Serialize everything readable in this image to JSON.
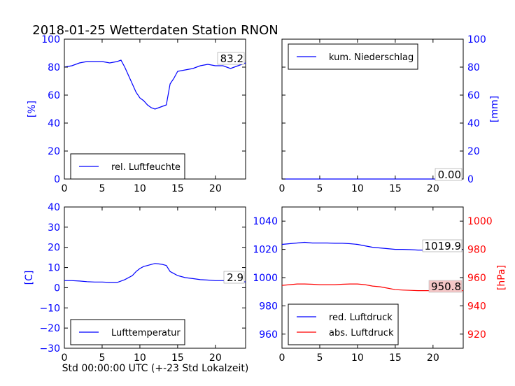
{
  "title": "2018-01-25 Wetterdaten Station RNON",
  "xlabel": "Std 00:00:00 UTC (+-23 Std Lokalzeit)",
  "colors": {
    "blue": "#0000ff",
    "red": "#ff0000",
    "axis": "#000000"
  },
  "chart_data": [
    {
      "type": "line",
      "id": "humidity",
      "ylabel": "[%]",
      "ylim": [
        0,
        100
      ],
      "xlim": [
        0,
        24
      ],
      "x_ticks": [
        "0",
        "5",
        "10",
        "15",
        "20"
      ],
      "y_ticks": [
        "0",
        "20",
        "40",
        "60",
        "80",
        "100"
      ],
      "legend": "rel. Luftfeuchte",
      "legend_placement": "lower-left",
      "last_value": "83.2",
      "series": [
        {
          "name": "rel. Luftfeuchte",
          "color": "#0000ff",
          "x": [
            0,
            1,
            2,
            3,
            4,
            5,
            6,
            7,
            7.5,
            8,
            8.5,
            9,
            9.5,
            10,
            10.5,
            11,
            11.5,
            12,
            12.5,
            13,
            13.5,
            14,
            14.5,
            15,
            16,
            17,
            18,
            19,
            20,
            21,
            22,
            23,
            24
          ],
          "values": [
            80,
            81,
            83,
            84,
            84,
            84,
            83,
            84,
            85,
            80,
            74,
            68,
            62,
            58,
            56,
            53,
            51,
            50,
            51,
            52,
            53,
            68,
            72,
            77,
            78,
            79,
            81,
            82,
            81,
            81,
            79,
            81,
            83
          ]
        }
      ]
    },
    {
      "type": "line",
      "id": "precip",
      "ylabel": "[mm]",
      "ylim": [
        0,
        100
      ],
      "xlim": [
        0,
        24
      ],
      "x_ticks": [
        "0",
        "5",
        "10",
        "15",
        "20"
      ],
      "y_ticks": [
        "0",
        "20",
        "40",
        "60",
        "80",
        "100"
      ],
      "legend": "kum. Niederschlag",
      "legend_placement": "top-left",
      "last_value": "0.00",
      "series": [
        {
          "name": "kum. Niederschlag",
          "color": "#0000ff",
          "x": [
            0,
            24
          ],
          "values": [
            0,
            0
          ]
        }
      ]
    },
    {
      "type": "line",
      "id": "temperature",
      "ylabel": "[C]",
      "ylim": [
        -30,
        40
      ],
      "xlim": [
        0,
        24
      ],
      "x_ticks": [
        "0",
        "5",
        "10",
        "15",
        "20"
      ],
      "y_ticks": [
        "−30",
        "−20",
        "−10",
        "0",
        "10",
        "20",
        "30",
        "40"
      ],
      "legend": "Lufttemperatur",
      "legend_placement": "lower-left",
      "last_value": "2.9",
      "series": [
        {
          "name": "Lufttemperatur",
          "color": "#0000ff",
          "x": [
            0,
            1,
            2,
            3,
            4,
            5,
            6,
            7,
            8,
            9,
            9.5,
            10,
            10.5,
            11,
            11.5,
            12,
            12.5,
            13,
            13.5,
            14,
            14.5,
            15,
            16,
            17,
            18,
            19,
            20,
            21,
            22,
            23,
            24
          ],
          "values": [
            3.5,
            3.5,
            3.3,
            3.0,
            2.8,
            2.8,
            2.6,
            2.6,
            4,
            6,
            8,
            9.5,
            10.5,
            11,
            11.5,
            12,
            11.8,
            11.5,
            11,
            8,
            7,
            6,
            5,
            4.5,
            4,
            3.8,
            3.5,
            3.5,
            3.5,
            3.2,
            2.9
          ]
        }
      ]
    },
    {
      "type": "line",
      "id": "pressure",
      "ylabel_right": "[hPa]",
      "ylim_left": [
        950,
        1050
      ],
      "ylim_right": [
        910,
        1010
      ],
      "xlim": [
        0,
        24
      ],
      "x_ticks": [
        "0",
        "5",
        "10",
        "15",
        "20"
      ],
      "y_ticks_left": [
        "960",
        "980",
        "1000",
        "1020",
        "1040"
      ],
      "y_ticks_right": [
        "920",
        "940",
        "960",
        "980",
        "1000"
      ],
      "legend": [
        "red. Luftdruck",
        "abs. Luftdruck"
      ],
      "legend_placement": "lower-left",
      "last_value_red": "1019.9",
      "last_value_abs": "950.8",
      "series": [
        {
          "name": "red. Luftdruck",
          "color": "#0000ff",
          "axis": "left",
          "x": [
            0,
            1,
            2,
            3,
            4,
            5,
            6,
            7,
            8,
            9,
            10,
            11,
            12,
            13,
            14,
            15,
            16,
            17,
            18,
            19,
            20,
            21,
            22,
            23,
            24
          ],
          "values": [
            1023.5,
            1024,
            1024.5,
            1025,
            1024.5,
            1024.5,
            1024.5,
            1024.3,
            1024.3,
            1024,
            1023.5,
            1022.5,
            1021.5,
            1021,
            1020.5,
            1020,
            1020,
            1019.8,
            1019.5,
            1019.5,
            1019.5,
            1019.5,
            1019.7,
            1019.8,
            1019.9
          ]
        },
        {
          "name": "abs. Luftdruck",
          "color": "#ff0000",
          "axis": "right",
          "x": [
            0,
            1,
            2,
            3,
            4,
            5,
            6,
            7,
            8,
            9,
            10,
            11,
            12,
            13,
            14,
            15,
            16,
            17,
            18,
            19,
            20,
            21,
            22,
            23,
            24
          ],
          "values": [
            954.5,
            955,
            955.5,
            955.5,
            955.3,
            955,
            955,
            955,
            955.3,
            955.5,
            955.5,
            955,
            954,
            953.5,
            952.5,
            951.5,
            951.2,
            951,
            950.8,
            950.8,
            950.8,
            950.8,
            950.8,
            950.8,
            950.8
          ]
        }
      ]
    }
  ]
}
